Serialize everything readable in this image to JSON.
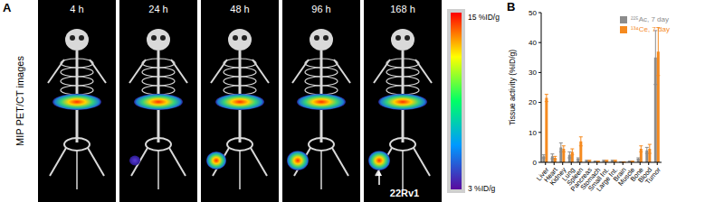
{
  "panel_a": {
    "panel_label": "A",
    "side_label": "MIP PET/CT images",
    "timepoints": [
      "4 h",
      "24 h",
      "48 h",
      "96 h",
      "168 h"
    ],
    "colorbar_labels": [
      "15 %ID/g",
      "3 %ID/g"
    ],
    "annotation": "22Rv1"
  },
  "chart_data": {
    "type": "bar",
    "title": "B",
    "y_label": "Tissue activity (%ID/g)",
    "categories": [
      "Liver",
      "Heart",
      "Kidney",
      "Lung",
      "Spleen",
      "Pancreas",
      "Stomach",
      "Small Int.",
      "Large Int.",
      "Brain",
      "Muscle",
      "Bone",
      "Blood",
      "Tumor"
    ],
    "series": [
      {
        "name": "²²⁵Ac, 7 day",
        "color": "#8c8c8c",
        "values": [
          2,
          2,
          5,
          2.5,
          1.2,
          0.5,
          0.3,
          0.5,
          0.5,
          0.1,
          0.3,
          1.2,
          4,
          35
        ],
        "errors": [
          0.5,
          0.8,
          1.5,
          1,
          0.3,
          0.2,
          0.1,
          0.2,
          0.2,
          0.05,
          0.1,
          0.3,
          1,
          9
        ]
      },
      {
        "name": "¹³⁴Ce, 7 day",
        "color": "#f58a1f",
        "values": [
          21.5,
          1.5,
          4.5,
          3.5,
          7,
          0.5,
          0.3,
          0.5,
          0.5,
          0.1,
          0.3,
          4.5,
          4.5,
          37
        ],
        "errors": [
          1.2,
          0.5,
          1,
          1,
          1.5,
          0.2,
          0.1,
          0.2,
          0.2,
          0.05,
          0.1,
          1,
          1.5,
          8
        ]
      }
    ],
    "ylim": [
      0,
      50
    ],
    "yticks": [
      0,
      10,
      20,
      30,
      40,
      50
    ],
    "grid": false,
    "legend": "upper right"
  }
}
